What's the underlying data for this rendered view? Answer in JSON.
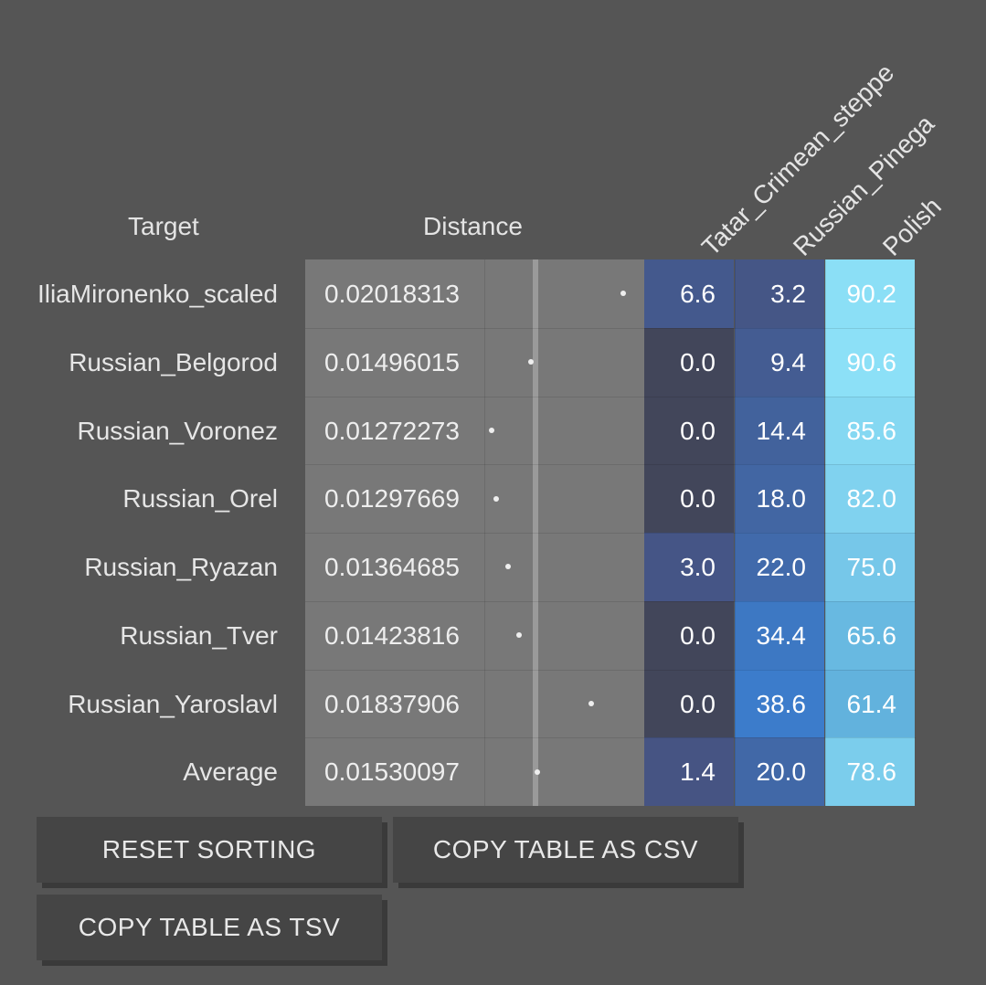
{
  "headers": {
    "target": "Target",
    "distance": "Distance",
    "columns": [
      "Tatar_Crimean_steppe",
      "Russian_Pinega",
      "Polish"
    ]
  },
  "rows": [
    {
      "target": "IliaMironenko_scaled",
      "distance": "0.02018313",
      "values": [
        "6.6",
        "3.2",
        "90.2"
      ]
    },
    {
      "target": "Russian_Belgorod",
      "distance": "0.01496015",
      "values": [
        "0.0",
        "9.4",
        "90.6"
      ]
    },
    {
      "target": "Russian_Voronez",
      "distance": "0.01272273",
      "values": [
        "0.0",
        "14.4",
        "85.6"
      ]
    },
    {
      "target": "Russian_Orel",
      "distance": "0.01297669",
      "values": [
        "0.0",
        "18.0",
        "82.0"
      ]
    },
    {
      "target": "Russian_Ryazan",
      "distance": "0.01364685",
      "values": [
        "3.0",
        "22.0",
        "75.0"
      ]
    },
    {
      "target": "Russian_Tver",
      "distance": "0.01423816",
      "values": [
        "0.0",
        "34.4",
        "65.6"
      ]
    },
    {
      "target": "Russian_Yaroslavl",
      "distance": "0.01837906",
      "values": [
        "0.0",
        "38.6",
        "61.4"
      ]
    },
    {
      "target": "Average",
      "distance": "0.01530097",
      "values": [
        "1.4",
        "20.0",
        "78.6"
      ]
    }
  ],
  "buttons": {
    "reset": "RESET SORTING",
    "csv": "COPY TABLE AS CSV",
    "tsv": "COPY TABLE AS TSV"
  },
  "colors": {
    "background": "#555555",
    "distance_bg": "#787878",
    "button_bg": "#454545"
  }
}
